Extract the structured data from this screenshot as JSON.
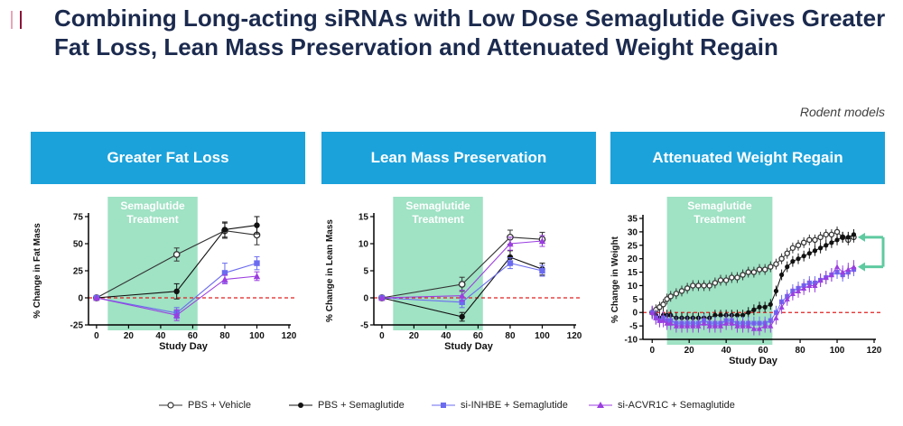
{
  "slide": {
    "title": "Combining Long-acting siRNAs with Low Dose Semaglutide Gives Greater Fat Loss, Lean Mass Preservation and Attenuated Weight Regain",
    "subtitle": "Rodent models",
    "header_color": "#1ba2db",
    "accent_colors": [
      "#e8a6b8",
      "#8a1538"
    ]
  },
  "panels": [
    {
      "header": "Greater Fat Loss"
    },
    {
      "header": "Lean Mass Preservation"
    },
    {
      "header": "Attenuated Weight Regain"
    }
  ],
  "legend": [
    {
      "label": "PBS + Vehicle",
      "marker": "open-circle",
      "color": "#333333"
    },
    {
      "label": "PBS + Semaglutide",
      "marker": "filled-circle",
      "color": "#111111"
    },
    {
      "label": "si-INHBE + Semaglutide",
      "marker": "square",
      "color": "#6b6bf0"
    },
    {
      "label": "si-ACVR1C + Semaglutide",
      "marker": "triangle",
      "color": "#9b3ee0"
    }
  ],
  "chart_data": [
    {
      "type": "line",
      "title": "Greater Fat Loss",
      "xlabel": "Study Day",
      "ylabel": "% Change in Fat Mass",
      "xlim": [
        -5,
        120
      ],
      "ylim": [
        -25,
        75
      ],
      "xticks": [
        0,
        20,
        40,
        60,
        80,
        100,
        120
      ],
      "yticks": [
        -25,
        0,
        25,
        50,
        75
      ],
      "treatment_band": {
        "label": "Semaglutide Treatment",
        "start": 7,
        "end": 63,
        "color": "#9fe2c4"
      },
      "reference_line": {
        "y": 0,
        "color": "#e02020"
      },
      "series": [
        {
          "name": "PBS + Vehicle",
          "x": [
            0,
            50,
            80,
            100
          ],
          "y": [
            0,
            40,
            62,
            58
          ],
          "err": [
            0,
            6,
            7,
            9
          ]
        },
        {
          "name": "PBS + Semaglutide",
          "x": [
            0,
            50,
            80,
            100
          ],
          "y": [
            0,
            6,
            63,
            67
          ],
          "err": [
            0,
            7,
            7,
            8
          ]
        },
        {
          "name": "si-INHBE + Semaglutide",
          "x": [
            0,
            50,
            80,
            100
          ],
          "y": [
            0,
            -14,
            23,
            32
          ],
          "err": [
            0,
            5,
            9,
            6
          ]
        },
        {
          "name": "si-ACVR1C + Semaglutide",
          "x": [
            0,
            50,
            80,
            100
          ],
          "y": [
            0,
            -16,
            17,
            20
          ],
          "err": [
            0,
            5,
            4,
            4
          ]
        }
      ]
    },
    {
      "type": "line",
      "title": "Lean Mass Preservation",
      "xlabel": "Study Day",
      "ylabel": "% Change in Lean Mass",
      "xlim": [
        -5,
        120
      ],
      "ylim": [
        -5,
        15
      ],
      "xticks": [
        0,
        20,
        40,
        60,
        80,
        100,
        120
      ],
      "yticks": [
        -5,
        0,
        5,
        10,
        15
      ],
      "treatment_band": {
        "label": "Semaglutide Treatment",
        "start": 7,
        "end": 63,
        "color": "#9fe2c4"
      },
      "reference_line": {
        "y": 0,
        "color": "#e02020"
      },
      "series": [
        {
          "name": "PBS + Vehicle",
          "x": [
            0,
            50,
            80,
            100
          ],
          "y": [
            0,
            2.5,
            11.2,
            10.8
          ],
          "err": [
            0,
            1.3,
            1.3,
            1.3
          ]
        },
        {
          "name": "PBS + Semaglutide",
          "x": [
            0,
            50,
            80,
            100
          ],
          "y": [
            0,
            -3.5,
            7.5,
            5.3
          ],
          "err": [
            0,
            0.8,
            1.2,
            1.1
          ]
        },
        {
          "name": "si-INHBE + Semaglutide",
          "x": [
            0,
            50,
            80,
            100
          ],
          "y": [
            0,
            -0.8,
            6.4,
            5.0
          ],
          "err": [
            0,
            1.0,
            1.0,
            1.0
          ]
        },
        {
          "name": "si-ACVR1C + Semaglutide",
          "x": [
            0,
            50,
            80,
            100
          ],
          "y": [
            0,
            0.4,
            10.0,
            10.5
          ],
          "err": [
            0,
            1.0,
            1.2,
            1.0
          ]
        }
      ]
    },
    {
      "type": "line",
      "title": "Attenuated Weight Regain",
      "xlabel": "Study Day",
      "ylabel": "% Change in Weight",
      "xlim": [
        -5,
        120
      ],
      "ylim": [
        -10,
        35
      ],
      "xticks": [
        0,
        20,
        40,
        60,
        80,
        100,
        120
      ],
      "yticks": [
        -10,
        -5,
        0,
        5,
        10,
        15,
        20,
        25,
        30,
        35
      ],
      "treatment_band": {
        "label": "Semaglutide Treatment",
        "start": 8,
        "end": 65,
        "color": "#9fe2c4"
      },
      "reference_line": {
        "y": 0,
        "color": "#e02020"
      },
      "arrow_color": "#5fcaa0",
      "x": [
        0,
        2,
        4,
        6,
        8,
        10,
        13,
        16,
        19,
        22,
        25,
        28,
        31,
        34,
        37,
        40,
        43,
        46,
        49,
        52,
        55,
        58,
        61,
        64,
        67,
        70,
        73,
        76,
        79,
        82,
        85,
        88,
        91,
        94,
        97,
        100,
        103,
        106,
        109
      ],
      "series": [
        {
          "name": "PBS + Vehicle",
          "y": [
            0,
            1,
            2,
            3,
            5,
            6,
            7,
            8,
            9,
            10,
            10,
            10,
            10,
            11,
            12,
            12,
            13,
            13,
            14,
            15,
            15,
            16,
            16,
            17,
            18,
            20,
            22,
            24,
            25,
            26,
            27,
            27,
            28,
            29,
            29,
            30,
            28,
            27,
            28
          ],
          "err": 2
        },
        {
          "name": "PBS + Semaglutide",
          "y": [
            0,
            -1,
            -2,
            -1,
            -1,
            -1,
            -2,
            -2,
            -2,
            -2,
            -2,
            -2,
            -2,
            -1,
            -1,
            -1,
            -1,
            -1,
            -1,
            0,
            1,
            2,
            2,
            3,
            8,
            14,
            17,
            19,
            20,
            21,
            22,
            23,
            24,
            25,
            26,
            27,
            28,
            28,
            29
          ],
          "err": 2
        },
        {
          "name": "si-INHBE + Semaglutide",
          "y": [
            0,
            -2,
            -3,
            -2,
            -3,
            -3,
            -4,
            -4,
            -4,
            -4,
            -4,
            -3,
            -4,
            -4,
            -4,
            -3,
            -3,
            -4,
            -4,
            -4,
            -4,
            -4,
            -4,
            -3,
            0,
            4,
            6,
            8,
            9,
            10,
            11,
            11,
            12,
            13,
            14,
            15,
            14,
            15,
            16
          ],
          "err": 2.5
        },
        {
          "name": "si-ACVR1C + Semaglutide",
          "y": [
            0,
            -2,
            -3,
            -3,
            -4,
            -4,
            -5,
            -5,
            -5,
            -5,
            -5,
            -4,
            -5,
            -5,
            -5,
            -4,
            -4,
            -5,
            -5,
            -5,
            -6,
            -6,
            -5,
            -5,
            -2,
            2,
            5,
            7,
            8,
            9,
            10,
            10,
            12,
            13,
            14,
            17,
            15,
            16,
            17
          ],
          "err": 2.5
        }
      ]
    }
  ]
}
